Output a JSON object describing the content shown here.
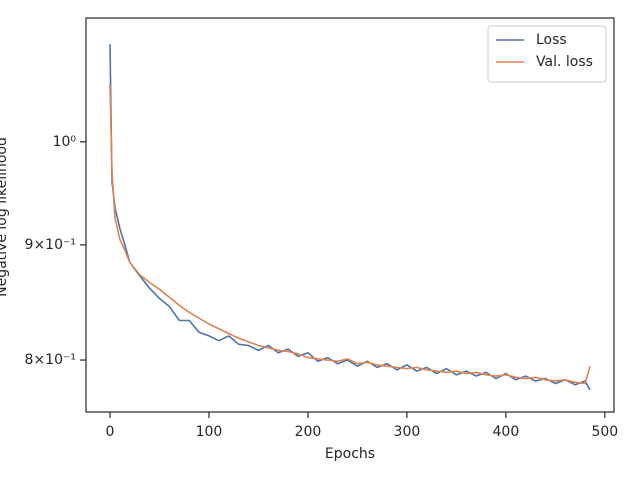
{
  "chart_data": {
    "type": "line",
    "xlabel": "Epochs",
    "ylabel": "Negative log likelihood",
    "x": [
      0,
      2,
      5,
      10,
      15,
      20,
      30,
      40,
      50,
      60,
      70,
      80,
      90,
      100,
      110,
      120,
      130,
      140,
      150,
      160,
      170,
      180,
      190,
      200,
      210,
      220,
      230,
      240,
      250,
      260,
      270,
      280,
      290,
      300,
      310,
      320,
      330,
      340,
      350,
      360,
      370,
      380,
      390,
      400,
      410,
      420,
      430,
      440,
      450,
      460,
      470,
      480,
      485
    ],
    "series": [
      {
        "name": "Loss",
        "color": "#4c72b0",
        "values": [
          1.105,
          0.96,
          0.935,
          0.915,
          0.9,
          0.884,
          0.872,
          0.861,
          0.852,
          0.845,
          0.833,
          0.833,
          0.823,
          0.82,
          0.816,
          0.82,
          0.813,
          0.812,
          0.808,
          0.812,
          0.806,
          0.809,
          0.803,
          0.806,
          0.799,
          0.802,
          0.797,
          0.8,
          0.795,
          0.799,
          0.794,
          0.797,
          0.792,
          0.796,
          0.791,
          0.794,
          0.789,
          0.793,
          0.788,
          0.791,
          0.787,
          0.79,
          0.785,
          0.789,
          0.784,
          0.787,
          0.783,
          0.785,
          0.781,
          0.784,
          0.78,
          0.783,
          0.776
        ]
      },
      {
        "name": "Val. loss",
        "color": "#dd8452",
        "values": [
          1.06,
          0.97,
          0.925,
          0.905,
          0.895,
          0.884,
          0.873,
          0.866,
          0.86,
          0.853,
          0.846,
          0.84,
          0.835,
          0.83,
          0.826,
          0.822,
          0.818,
          0.815,
          0.812,
          0.81,
          0.808,
          0.807,
          0.805,
          0.802,
          0.801,
          0.8,
          0.799,
          0.801,
          0.797,
          0.798,
          0.796,
          0.795,
          0.794,
          0.793,
          0.794,
          0.792,
          0.791,
          0.79,
          0.791,
          0.789,
          0.79,
          0.788,
          0.787,
          0.788,
          0.786,
          0.785,
          0.786,
          0.784,
          0.783,
          0.784,
          0.782,
          0.781,
          0.795
        ]
      }
    ],
    "xlim": [
      -24.25,
      509.25
    ],
    "xticks": [
      0,
      100,
      200,
      300,
      400,
      500
    ],
    "ylim": [
      0.7586,
      1.135
    ],
    "log_y": true,
    "yticks": [
      {
        "value": 1,
        "label": "10⁰"
      },
      {
        "value": 0.9,
        "label": "9×10⁻¹"
      },
      {
        "value": 0.8,
        "label": "8×10⁻¹"
      }
    ],
    "legend": "upper right",
    "grid": false
  }
}
